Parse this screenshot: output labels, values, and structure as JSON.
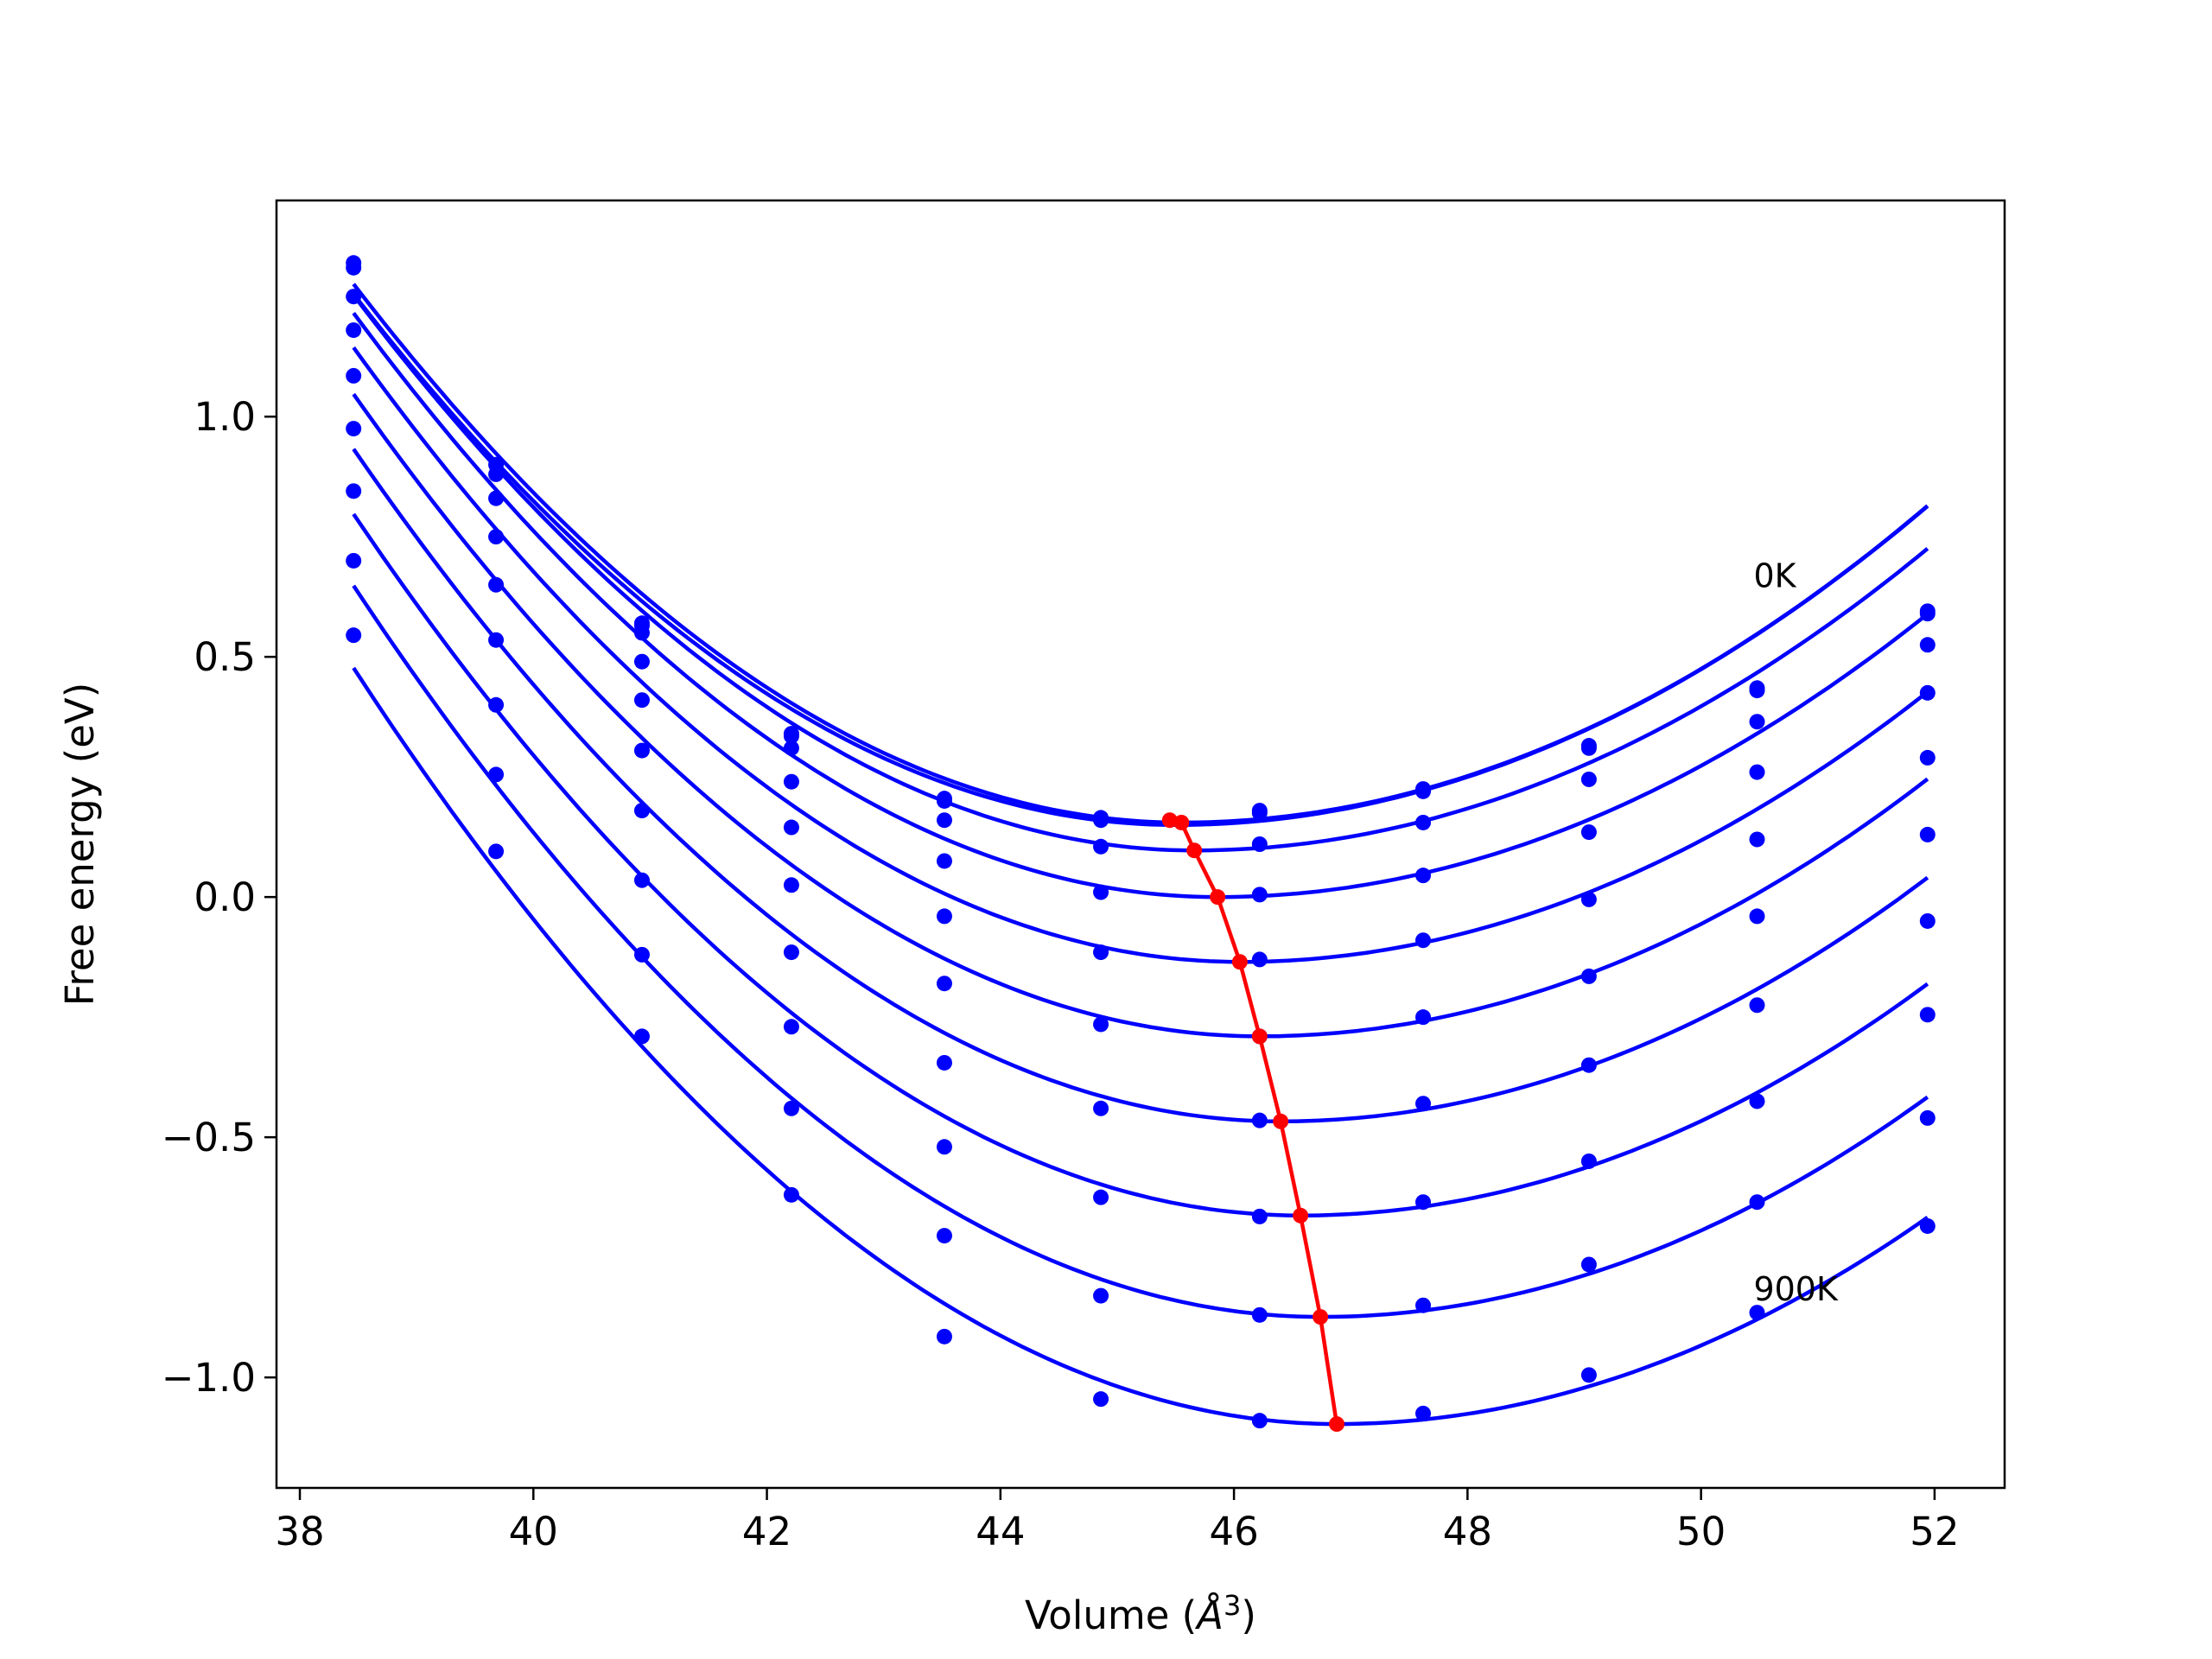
{
  "chart_data": {
    "type": "line",
    "title": "",
    "xlabel": "Volume (",
    "xlabel_unit": "Å",
    "xlabel_exp": "3",
    "xlabel_end": ")",
    "ylabel": "Free energy (eV)",
    "xlim": [
      37.8,
      52.6
    ],
    "ylim": [
      -1.23,
      1.45
    ],
    "xticks": [
      38,
      40,
      42,
      44,
      46,
      48,
      50,
      52
    ],
    "xtick_labels": [
      "38",
      "40",
      "42",
      "44",
      "46",
      "48",
      "50",
      "52"
    ],
    "yticks": [
      -1.0,
      -0.5,
      0.0,
      0.5,
      1.0
    ],
    "ytick_labels": [
      "−1.0",
      "−0.5",
      "0.0",
      "0.5",
      "1.0"
    ],
    "grid": false,
    "annotations": [
      {
        "text": "0K",
        "x": 50.45,
        "y": 0.645
      },
      {
        "text": "900K",
        "x": 50.45,
        "y": -0.84
      }
    ],
    "colors": {
      "fits": "#0000ff",
      "points": "#0000ff",
      "minimum_path": "#ff0000"
    },
    "volumes": [
      38.46,
      39.68,
      40.93,
      42.21,
      43.52,
      44.86,
      46.22,
      47.62,
      49.04,
      50.48,
      51.94
    ],
    "series": [
      {
        "points": [
          1.32,
          0.9,
          0.57,
          0.34,
          0.2,
          0.165,
          0.18,
          0.225,
          0.315,
          0.435,
          0.595
        ],
        "fit": {
          "v0": 45.55,
          "e0": 0.155,
          "a_left": 0.0223,
          "a_right": 0.01615
        }
      },
      {
        "points": [
          1.31,
          0.88,
          0.565,
          0.335,
          0.205,
          0.16,
          0.175,
          0.22,
          0.31,
          0.43,
          0.59
        ],
        "fit": {
          "v0": 45.5,
          "e0": 0.15,
          "a_left": 0.0223,
          "a_right": 0.016
        }
      },
      {
        "points": [
          1.25,
          0.83,
          0.55,
          0.31,
          0.16,
          0.105,
          0.11,
          0.155,
          0.245,
          0.365,
          0.525
        ],
        "fit": {
          "v0": 45.66,
          "e0": 0.097,
          "a_left": 0.0223,
          "a_right": 0.01593
        }
      },
      {
        "points": [
          1.18,
          0.75,
          0.49,
          0.24,
          0.075,
          0.01,
          0.005,
          0.045,
          0.135,
          0.26,
          0.425
        ],
        "fit": {
          "v0": 45.86,
          "e0": 0.0,
          "a_left": 0.0222,
          "a_right": 0.01594
        }
      },
      {
        "points": [
          1.085,
          0.65,
          0.41,
          0.145,
          -0.04,
          -0.115,
          -0.13,
          -0.09,
          -0.005,
          0.12,
          0.29
        ],
        "fit": {
          "v0": 46.05,
          "e0": -0.135,
          "a_left": 0.0222,
          "a_right": 0.0162
        }
      },
      {
        "points": [
          0.975,
          0.535,
          0.305,
          0.025,
          -0.18,
          -0.265,
          -0.29,
          -0.25,
          -0.165,
          -0.04,
          0.13
        ],
        "fit": {
          "v0": 46.22,
          "e0": -0.29,
          "a_left": 0.0222,
          "a_right": 0.01637
        }
      },
      {
        "points": [
          0.845,
          0.4,
          0.18,
          -0.115,
          -0.345,
          -0.44,
          -0.465,
          -0.43,
          -0.35,
          -0.225,
          -0.05
        ],
        "fit": {
          "v0": 46.4,
          "e0": -0.467,
          "a_left": 0.0222,
          "a_right": 0.01653
        }
      },
      {
        "points": [
          0.7,
          0.255,
          0.035,
          -0.27,
          -0.52,
          -0.625,
          -0.665,
          -0.635,
          -0.55,
          -0.425,
          -0.245
        ],
        "fit": {
          "v0": 46.57,
          "e0": -0.663,
          "a_left": 0.0222,
          "a_right": 0.01672
        }
      },
      {
        "points": [
          0.545,
          0.095,
          -0.12,
          -0.44,
          -0.705,
          -0.83,
          -0.87,
          -0.85,
          -0.765,
          -0.635,
          -0.46
        ],
        "fit": {
          "v0": 46.74,
          "e0": -0.874,
          "a_left": 0.0222,
          "a_right": 0.01692
        }
      },
      {
        "points": [
          null,
          null,
          -0.29,
          -0.62,
          -0.915,
          -1.045,
          -1.09,
          -1.075,
          -0.995,
          -0.865,
          -0.685
        ],
        "fit": {
          "v0": 46.88,
          "e0": -1.097,
          "a_left": 0.0222,
          "a_right": 0.0168
        }
      }
    ],
    "minimum_path": {
      "x": [
        45.45,
        45.55,
        45.66,
        45.86,
        46.05,
        46.22,
        46.4,
        46.57,
        46.74,
        46.88
      ],
      "y": [
        0.16,
        0.155,
        0.097,
        0.0,
        -0.135,
        -0.29,
        -0.467,
        -0.663,
        -0.874,
        -1.097
      ]
    }
  }
}
